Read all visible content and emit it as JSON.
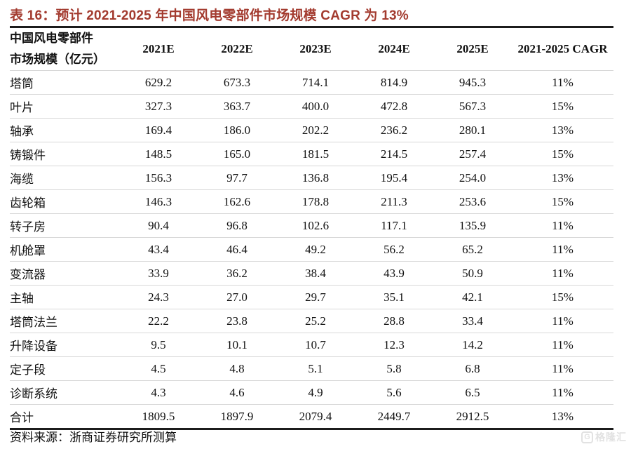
{
  "title": "表 16：预计 2021-2025 年中国风电零部件市场规模 CAGR 为 13%",
  "table": {
    "header": {
      "label_line1": "中国风电零部件",
      "label_line2": "市场规模（亿元）",
      "columns": [
        "2021E",
        "2022E",
        "2023E",
        "2024E",
        "2025E",
        "2021-2025 CAGR"
      ]
    },
    "rows": [
      {
        "label": "塔筒",
        "values": [
          "629.2",
          "673.3",
          "714.1",
          "814.9",
          "945.3",
          "11%"
        ]
      },
      {
        "label": "叶片",
        "values": [
          "327.3",
          "363.7",
          "400.0",
          "472.8",
          "567.3",
          "15%"
        ]
      },
      {
        "label": "轴承",
        "values": [
          "169.4",
          "186.0",
          "202.2",
          "236.2",
          "280.1",
          "13%"
        ]
      },
      {
        "label": "铸锻件",
        "values": [
          "148.5",
          "165.0",
          "181.5",
          "214.5",
          "257.4",
          "15%"
        ]
      },
      {
        "label": "海缆",
        "values": [
          "156.3",
          "97.7",
          "136.8",
          "195.4",
          "254.0",
          "13%"
        ]
      },
      {
        "label": "齿轮箱",
        "values": [
          "146.3",
          "162.6",
          "178.8",
          "211.3",
          "253.6",
          "15%"
        ]
      },
      {
        "label": "转子房",
        "values": [
          "90.4",
          "96.8",
          "102.6",
          "117.1",
          "135.9",
          "11%"
        ]
      },
      {
        "label": "机舱罩",
        "values": [
          "43.4",
          "46.4",
          "49.2",
          "56.2",
          "65.2",
          "11%"
        ]
      },
      {
        "label": "变流器",
        "values": [
          "33.9",
          "36.2",
          "38.4",
          "43.9",
          "50.9",
          "11%"
        ]
      },
      {
        "label": "主轴",
        "values": [
          "24.3",
          "27.0",
          "29.7",
          "35.1",
          "42.1",
          "15%"
        ]
      },
      {
        "label": "塔筒法兰",
        "values": [
          "22.2",
          "23.8",
          "25.2",
          "28.8",
          "33.4",
          "11%"
        ]
      },
      {
        "label": "升降设备",
        "values": [
          "9.5",
          "10.1",
          "10.7",
          "12.3",
          "14.2",
          "11%"
        ]
      },
      {
        "label": "定子段",
        "values": [
          "4.5",
          "4.8",
          "5.1",
          "5.8",
          "6.8",
          "11%"
        ]
      },
      {
        "label": "诊断系统",
        "values": [
          "4.3",
          "4.6",
          "4.9",
          "5.6",
          "6.5",
          "11%"
        ]
      },
      {
        "label": "合计",
        "values": [
          "1809.5",
          "1897.9",
          "2079.4",
          "2449.7",
          "2912.5",
          "13%"
        ]
      }
    ]
  },
  "source": "资料来源：浙商证券研究所测算",
  "watermark": {
    "logo": "G",
    "text": "格隆汇"
  },
  "colors": {
    "title_red": "#A33B2F",
    "rule_dark": "#1c1c1c",
    "rule_light": "#d8d8d8",
    "watermark_gray": "#e2e2e2"
  },
  "chart_data": {
    "type": "table",
    "title": "表 16：预计 2021-2025 年中国风电零部件市场规模 CAGR 为 13%",
    "unit": "亿元",
    "categories": [
      "2021E",
      "2022E",
      "2023E",
      "2024E",
      "2025E",
      "2021-2025 CAGR"
    ],
    "series": [
      {
        "name": "塔筒",
        "values": [
          629.2,
          673.3,
          714.1,
          814.9,
          945.3
        ],
        "cagr": "11%"
      },
      {
        "name": "叶片",
        "values": [
          327.3,
          363.7,
          400.0,
          472.8,
          567.3
        ],
        "cagr": "15%"
      },
      {
        "name": "轴承",
        "values": [
          169.4,
          186.0,
          202.2,
          236.2,
          280.1
        ],
        "cagr": "13%"
      },
      {
        "name": "铸锻件",
        "values": [
          148.5,
          165.0,
          181.5,
          214.5,
          257.4
        ],
        "cagr": "15%"
      },
      {
        "name": "海缆",
        "values": [
          156.3,
          97.7,
          136.8,
          195.4,
          254.0
        ],
        "cagr": "13%"
      },
      {
        "name": "齿轮箱",
        "values": [
          146.3,
          162.6,
          178.8,
          211.3,
          253.6
        ],
        "cagr": "15%"
      },
      {
        "name": "转子房",
        "values": [
          90.4,
          96.8,
          102.6,
          117.1,
          135.9
        ],
        "cagr": "11%"
      },
      {
        "name": "机舱罩",
        "values": [
          43.4,
          46.4,
          49.2,
          56.2,
          65.2
        ],
        "cagr": "11%"
      },
      {
        "name": "变流器",
        "values": [
          33.9,
          36.2,
          38.4,
          43.9,
          50.9
        ],
        "cagr": "11%"
      },
      {
        "name": "主轴",
        "values": [
          24.3,
          27.0,
          29.7,
          35.1,
          42.1
        ],
        "cagr": "15%"
      },
      {
        "name": "塔筒法兰",
        "values": [
          22.2,
          23.8,
          25.2,
          28.8,
          33.4
        ],
        "cagr": "11%"
      },
      {
        "name": "升降设备",
        "values": [
          9.5,
          10.1,
          10.7,
          12.3,
          14.2
        ],
        "cagr": "11%"
      },
      {
        "name": "定子段",
        "values": [
          4.5,
          4.8,
          5.1,
          5.8,
          6.8
        ],
        "cagr": "11%"
      },
      {
        "name": "诊断系统",
        "values": [
          4.3,
          4.6,
          4.9,
          5.6,
          6.5
        ],
        "cagr": "11%"
      },
      {
        "name": "合计",
        "values": [
          1809.5,
          1897.9,
          2079.4,
          2449.7,
          2912.5
        ],
        "cagr": "13%"
      }
    ]
  }
}
